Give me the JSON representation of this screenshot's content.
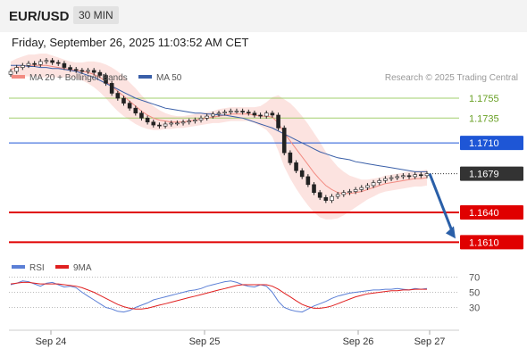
{
  "header": {
    "instrument": "EUR/USD",
    "timeframe": "30 MIN",
    "timestamp": "Friday, September 26, 2025 11:03:52 AM CET"
  },
  "legend": {
    "bb_label": "MA 20 + Bollinger Bands",
    "ma50_label": "MA 50",
    "credit": "Research © 2025 Trading Central",
    "bb_color": "#f28b82",
    "ma50_color": "#3a5fa8"
  },
  "rsi_legend": {
    "rsi_label": "RSI",
    "ma_label": "9MA",
    "rsi_color": "#5b7fd6",
    "ma_color": "#e02020"
  },
  "chart_data": {
    "type": "candlestick",
    "x_tick_labels": [
      "Sep 24",
      "Sep 25",
      "Sep 26",
      "Sep 27"
    ],
    "y_range": [
      1.1595,
      1.18
    ],
    "levels": [
      {
        "value": 1.1755,
        "label": "1.1755",
        "color": "#8bc34a",
        "style": "thin"
      },
      {
        "value": 1.1735,
        "label": "1.1735",
        "color": "#8bc34a",
        "style": "thin"
      },
      {
        "value": 1.171,
        "label": "1.1710",
        "color": "#1e56d6",
        "style": "line"
      },
      {
        "value": 1.1679,
        "label": "1.1679",
        "color": "#333333",
        "style": "dotted"
      },
      {
        "value": 1.164,
        "label": "1.1640",
        "color": "#e00000",
        "style": "thick"
      },
      {
        "value": 1.161,
        "label": "1.1610",
        "color": "#e00000",
        "style": "thick"
      }
    ],
    "price_path": [
      1.1782,
      1.1786,
      1.1788,
      1.179,
      1.1789,
      1.1792,
      1.1793,
      1.1791,
      1.179,
      1.1786,
      1.1784,
      1.1783,
      1.1782,
      1.1783,
      1.1781,
      1.1778,
      1.177,
      1.176,
      1.1755,
      1.175,
      1.1745,
      1.174,
      1.1735,
      1.1731,
      1.1728,
      1.1727,
      1.1729,
      1.173,
      1.173,
      1.1731,
      1.1732,
      1.1733,
      1.1735,
      1.1737,
      1.1739,
      1.174,
      1.1741,
      1.1742,
      1.1742,
      1.1741,
      1.174,
      1.1738,
      1.1737,
      1.174,
      1.1738,
      1.1725,
      1.17,
      1.169,
      1.1682,
      1.1676,
      1.1668,
      1.166,
      1.1655,
      1.1652,
      1.1656,
      1.1658,
      1.166,
      1.1661,
      1.1663,
      1.1665,
      1.1667,
      1.167,
      1.1672,
      1.1674,
      1.1675,
      1.1676,
      1.1677,
      1.1676,
      1.1678,
      1.1677,
      1.1679
    ],
    "ma20": [
      1.1784,
      1.1786,
      1.1787,
      1.1788,
      1.1788,
      1.1788,
      1.1788,
      1.1787,
      1.1786,
      1.1785,
      1.1784,
      1.1783,
      1.1782,
      1.1781,
      1.1779,
      1.1776,
      1.1772,
      1.1767,
      1.1762,
      1.1757,
      1.1752,
      1.1747,
      1.1742,
      1.1738,
      1.1735,
      1.1733,
      1.1732,
      1.1731,
      1.1731,
      1.1731,
      1.1732,
      1.1733,
      1.1734,
      1.1735,
      1.1736,
      1.1737,
      1.1738,
      1.1739,
      1.1739,
      1.1739,
      1.1739,
      1.1738,
      1.1737,
      1.1737,
      1.1736,
      1.173,
      1.172,
      1.1712,
      1.1704,
      1.1696,
      1.1688,
      1.168,
      1.1673,
      1.1667,
      1.1663,
      1.166,
      1.1659,
      1.1659,
      1.166,
      1.1661,
      1.1663,
      1.1665,
      1.1667,
      1.1669,
      1.167,
      1.1671,
      1.1672,
      1.1673,
      1.1674,
      1.1674,
      1.1675
    ],
    "ma50": [
      1.1788,
      1.1788,
      1.1788,
      1.1787,
      1.1787,
      1.1786,
      1.1786,
      1.1785,
      1.1785,
      1.1784,
      1.1783,
      1.1782,
      1.178,
      1.1778,
      1.1776,
      1.1773,
      1.177,
      1.1767,
      1.1764,
      1.1761,
      1.1758,
      1.1755,
      1.1753,
      1.1751,
      1.1749,
      1.1747,
      1.1745,
      1.1744,
      1.1743,
      1.1742,
      1.1741,
      1.174,
      1.174,
      1.1739,
      1.1739,
      1.1738,
      1.1738,
      1.1737,
      1.1736,
      1.1735,
      1.1733,
      1.1731,
      1.1729,
      1.1727,
      1.1725,
      1.1722,
      1.1719,
      1.1716,
      1.1713,
      1.171,
      1.1707,
      1.1704,
      1.1701,
      1.1699,
      1.1697,
      1.1695,
      1.1694,
      1.1693,
      1.1691,
      1.169,
      1.1689,
      1.1688,
      1.1687,
      1.1686,
      1.1685,
      1.1684,
      1.1683,
      1.1682,
      1.1681,
      1.1681,
      1.1681
    ],
    "bb_width": [
      8,
      9,
      10,
      11,
      11,
      12,
      12,
      11,
      10,
      9,
      8,
      8,
      9,
      11,
      13,
      15,
      17,
      19,
      20,
      20,
      19,
      18,
      16,
      14,
      12,
      10,
      8,
      7,
      6,
      6,
      6,
      6,
      6,
      6,
      6,
      7,
      7,
      7,
      7,
      7,
      7,
      8,
      10,
      14,
      20,
      28,
      34,
      38,
      40,
      41,
      41,
      40,
      38,
      34,
      30,
      26,
      22,
      18,
      15,
      12,
      10,
      9,
      8,
      8,
      8,
      8,
      8,
      8,
      8,
      8,
      8
    ],
    "forecast": {
      "from": 1.1679,
      "to": 1.161
    },
    "rsi": {
      "y_ticks": [
        70,
        50,
        30
      ],
      "rsi_values": [
        60,
        62,
        65,
        64,
        61,
        58,
        62,
        63,
        60,
        57,
        58,
        56,
        50,
        45,
        40,
        35,
        30,
        28,
        25,
        24,
        26,
        30,
        33,
        36,
        40,
        42,
        44,
        46,
        48,
        50,
        52,
        53,
        55,
        58,
        60,
        62,
        64,
        65,
        63,
        60,
        58,
        57,
        60,
        58,
        50,
        38,
        30,
        27,
        25,
        24,
        28,
        32,
        35,
        38,
        42,
        45,
        47,
        49,
        50,
        51,
        52,
        53,
        53,
        54,
        54,
        55,
        54,
        53,
        55,
        54,
        55
      ],
      "ma_values": [
        61,
        62,
        63,
        63,
        62,
        61,
        61,
        61,
        61,
        60,
        59,
        58,
        56,
        53,
        50,
        46,
        42,
        38,
        34,
        31,
        29,
        28,
        28,
        29,
        31,
        33,
        35,
        37,
        39,
        41,
        43,
        45,
        47,
        49,
        51,
        53,
        55,
        57,
        59,
        60,
        60,
        60,
        60,
        60,
        58,
        54,
        49,
        44,
        39,
        34,
        31,
        29,
        29,
        30,
        32,
        35,
        38,
        41,
        44,
        46,
        48,
        49,
        50,
        51,
        52,
        52,
        53,
        53,
        54,
        54,
        54
      ]
    }
  }
}
